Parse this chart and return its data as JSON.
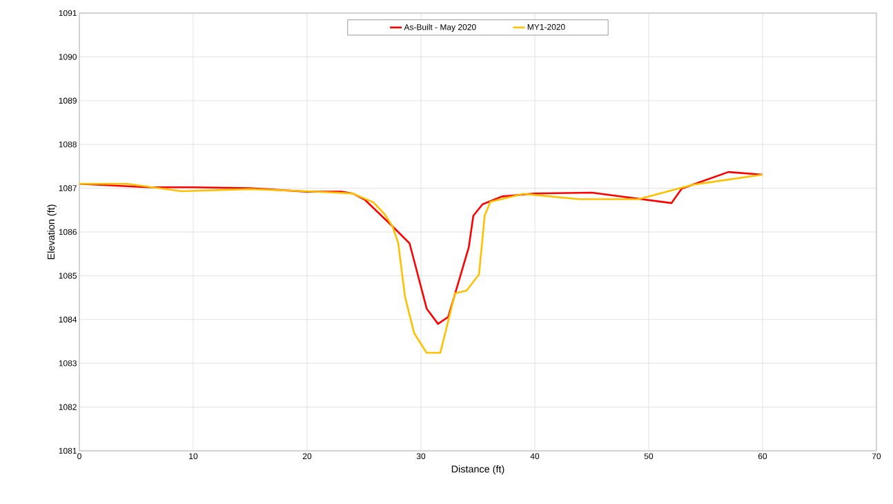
{
  "chart_data": {
    "type": "line",
    "xlabel": "Distance (ft)",
    "ylabel": "Elevation (ft)",
    "xlim": [
      0,
      70
    ],
    "ylim": [
      1081,
      1091
    ],
    "xticks": [
      0,
      10,
      20,
      30,
      40,
      50,
      60,
      70
    ],
    "yticks": [
      1081,
      1082,
      1083,
      1084,
      1085,
      1086,
      1087,
      1088,
      1089,
      1090,
      1091
    ],
    "grid": true,
    "legend": "top",
    "marker": "none",
    "line_style": "solid",
    "series": [
      {
        "name": "As-Built - May 2020",
        "color": "#ff0000",
        "x": [
          0,
          6,
          10,
          15,
          20,
          23,
          24,
          25.1,
          27.5,
          29,
          30.5,
          31.5,
          32.4,
          34.2,
          34.6,
          35.4,
          37.1,
          40,
          45,
          52,
          52.9,
          57,
          60
        ],
        "values": [
          1087.1,
          1087.02,
          1087.02,
          1087.0,
          1086.92,
          1086.92,
          1086.88,
          1086.73,
          1086.13,
          1085.74,
          1084.25,
          1083.9,
          1084.06,
          1085.65,
          1086.37,
          1086.63,
          1086.81,
          1086.88,
          1086.9,
          1086.66,
          1086.99,
          1087.37,
          1087.31
        ]
      },
      {
        "name": "MY1-2020",
        "color": "#ffc000",
        "x": [
          0,
          4.2,
          9,
          15,
          20,
          24,
          25.8,
          26.8,
          27.5,
          28.0,
          28.6,
          29.4,
          30.5,
          31.7,
          33.0,
          34.0,
          35.1,
          35.6,
          36.1,
          39.0,
          43.9,
          49.1,
          53.9,
          60
        ],
        "values": [
          1087.1,
          1087.1,
          1086.93,
          1086.98,
          1086.93,
          1086.88,
          1086.68,
          1086.41,
          1086.13,
          1085.75,
          1084.52,
          1083.69,
          1083.24,
          1083.24,
          1084.6,
          1084.66,
          1085.03,
          1086.38,
          1086.69,
          1086.87,
          1086.75,
          1086.75,
          1087.08,
          1087.31
        ]
      }
    ]
  }
}
